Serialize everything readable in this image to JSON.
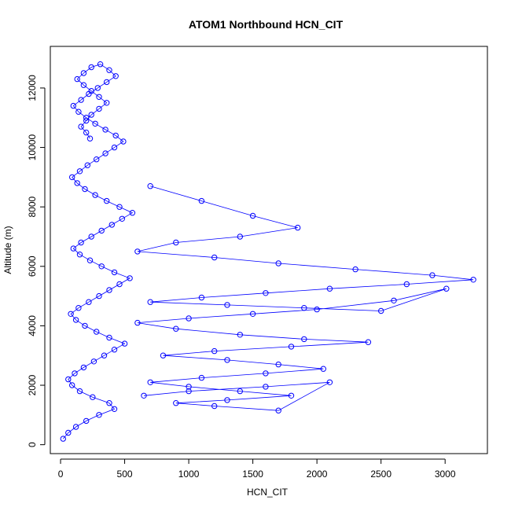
{
  "chart_data": {
    "type": "scatter",
    "title": "ATOM1 Northbound HCN_CIT",
    "xlabel": "HCN_CIT",
    "ylabel": "Altitude (m)",
    "xlim": [
      -80,
      3330
    ],
    "ylim": [
      -300,
      13400
    ],
    "x_ticks": [
      0,
      500,
      1000,
      1500,
      2000,
      2500,
      3000
    ],
    "y_ticks": [
      0,
      2000,
      4000,
      6000,
      8000,
      10000,
      12000
    ],
    "x_tick_labels": [
      "0",
      "500",
      "1000",
      "1500",
      "2000",
      "2500",
      "3000"
    ],
    "y_tick_labels": [
      "0",
      "2000",
      "4000",
      "6000",
      "8000",
      "10000",
      "12000"
    ],
    "grid": false,
    "series_style": "points connected by lines, open circles",
    "color": "#0000ff",
    "series": [
      {
        "x": [
          20,
          60,
          120,
          200,
          300,
          420,
          380,
          250,
          150,
          90,
          60,
          110,
          180,
          260,
          340,
          420,
          500,
          380,
          280,
          190,
          120,
          80,
          140,
          220,
          300,
          380,
          460,
          540,
          420,
          320,
          230,
          150,
          100,
          160,
          240,
          320,
          400,
          480,
          560,
          460,
          360,
          270,
          190,
          130,
          90,
          150,
          210,
          280,
          350,
          420,
          490,
          430,
          350,
          270,
          200,
          140,
          100,
          160,
          220,
          290,
          360,
          430,
          380,
          310,
          240,
          180,
          130,
          180,
          240,
          300,
          360,
          300,
          240,
          200,
          160,
          200,
          230
        ],
        "y": [
          200,
          400,
          600,
          800,
          1000,
          1200,
          1400,
          1600,
          1800,
          2000,
          2200,
          2400,
          2600,
          2800,
          3000,
          3200,
          3400,
          3600,
          3800,
          4000,
          4200,
          4400,
          4600,
          4800,
          5000,
          5200,
          5400,
          5600,
          5800,
          6000,
          6200,
          6400,
          6600,
          6800,
          7000,
          7200,
          7400,
          7600,
          7800,
          8000,
          8200,
          8400,
          8600,
          8800,
          9000,
          9200,
          9400,
          9600,
          9800,
          10000,
          10200,
          10400,
          10600,
          10800,
          11000,
          11200,
          11400,
          11600,
          11800,
          12000,
          12200,
          12400,
          12600,
          12800,
          12700,
          12500,
          12300,
          12100,
          11900,
          11700,
          11500,
          11300,
          11100,
          10900,
          10700,
          10500,
          10300
        ]
      },
      {
        "x": [
          700,
          1100,
          1500,
          1850,
          1400,
          900,
          600,
          1200,
          1700,
          2300,
          2900,
          3220,
          2700,
          2100,
          1600,
          1100,
          700,
          1300,
          1900,
          2500,
          3010,
          2600,
          2000,
          1500,
          1000,
          600,
          900,
          1400,
          1900,
          2400,
          1800,
          1200,
          800,
          1300,
          1700,
          2050,
          1600,
          1100,
          700,
          1000,
          1400,
          1800,
          1300,
          900,
          1200,
          1700,
          2100,
          1600,
          1000,
          650
        ],
        "y": [
          8700,
          8200,
          7700,
          7300,
          7000,
          6800,
          6500,
          6300,
          6100,
          5900,
          5700,
          5550,
          5400,
          5250,
          5100,
          4950,
          4800,
          4700,
          4600,
          4500,
          5250,
          4850,
          4550,
          4400,
          4250,
          4100,
          3900,
          3700,
          3550,
          3450,
          3300,
          3150,
          3000,
          2850,
          2700,
          2550,
          2400,
          2250,
          2100,
          1950,
          1800,
          1650,
          1500,
          1400,
          1300,
          1150,
          2100,
          1950,
          1800,
          1650
        ]
      }
    ]
  }
}
